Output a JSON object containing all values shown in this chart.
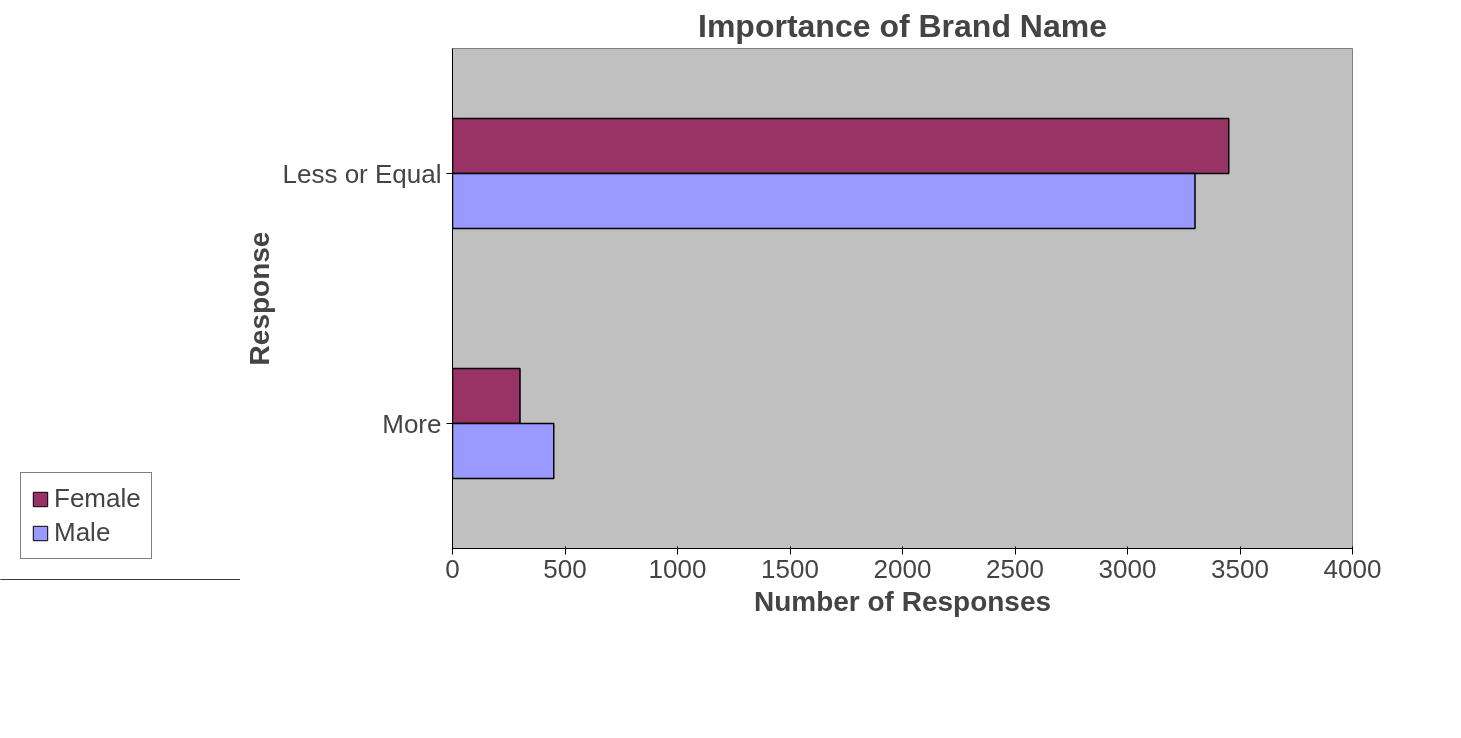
{
  "chart_data": {
    "type": "bar",
    "orientation": "horizontal",
    "title": "Importance of Brand Name",
    "xlabel": "Number of Responses",
    "ylabel": "Response",
    "categories": [
      "Less or Equal",
      "More"
    ],
    "series": [
      {
        "name": "Female",
        "color": "#993366",
        "values": [
          3450,
          300
        ]
      },
      {
        "name": "Male",
        "color": "#9999ff",
        "values": [
          3300,
          450
        ]
      }
    ],
    "xlim": [
      0,
      4000
    ],
    "xticks": [
      0,
      500,
      1000,
      1500,
      2000,
      2500,
      3000,
      3500,
      4000
    ],
    "grid": false,
    "legend": "bottom left"
  }
}
